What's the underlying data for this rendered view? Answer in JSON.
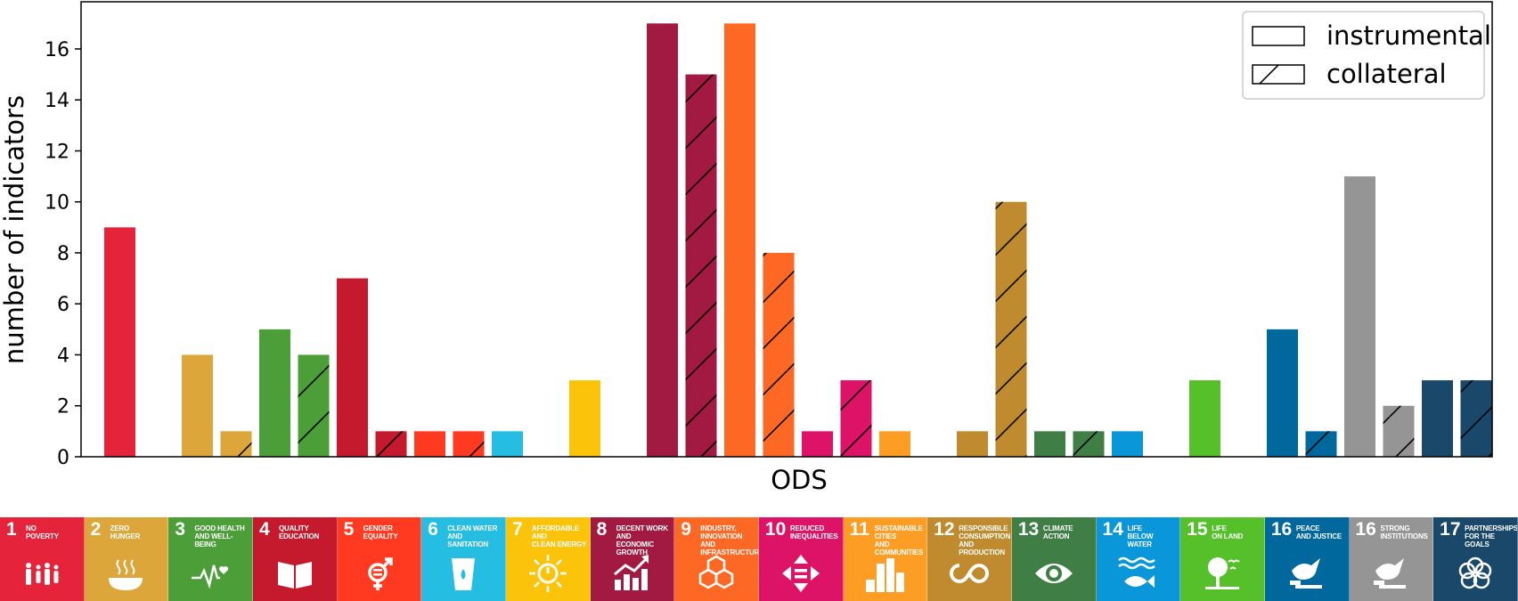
{
  "chart_data": {
    "type": "bar",
    "xlabel": "ODS",
    "ylabel": "number of indicators",
    "ylim": [
      0,
      17.85
    ],
    "yticks": [
      0,
      2,
      4,
      6,
      8,
      10,
      12,
      14,
      16
    ],
    "legend": {
      "placement": "top-right",
      "entries": [
        {
          "name": "instrumental",
          "pattern": "plain"
        },
        {
          "name": "collateral",
          "pattern": "hatched"
        }
      ]
    },
    "categories": [
      "1",
      "2",
      "3",
      "4",
      "5",
      "6",
      "7",
      "8",
      "9",
      "10",
      "11",
      "12",
      "13",
      "14",
      "15",
      "16",
      "16",
      "17"
    ],
    "series": [
      {
        "name": "instrumental",
        "values": [
          9,
          4,
          5,
          7,
          1,
          1,
          3,
          17,
          17,
          1,
          1,
          1,
          1,
          1,
          3,
          5,
          11,
          3
        ]
      },
      {
        "name": "collateral",
        "values": [
          0,
          1,
          4,
          1,
          1,
          0,
          0,
          15,
          8,
          3,
          0,
          10,
          1,
          0,
          0,
          1,
          2,
          3
        ]
      }
    ],
    "colors": [
      "#e5243b",
      "#dda63a",
      "#4c9f38",
      "#c5192d",
      "#ff3a21",
      "#26bde2",
      "#fcc30b",
      "#a21942",
      "#fd6925",
      "#dd1367",
      "#fd9d24",
      "#bf8b2e",
      "#3f7e44",
      "#0a97d9",
      "#56c02b",
      "#00689d",
      "#959595",
      "#19486a"
    ]
  },
  "goals": [
    {
      "number": "1",
      "title": "No\npoverty",
      "color": "#e5243b",
      "icon": "family-icon"
    },
    {
      "number": "2",
      "title": "Zero\nhunger",
      "color": "#dda63a",
      "icon": "food-bowl-icon"
    },
    {
      "number": "3",
      "title": "Good health\nand well-being",
      "color": "#4c9f38",
      "icon": "heartbeat-icon"
    },
    {
      "number": "4",
      "title": "Quality\neducation",
      "color": "#c5192d",
      "icon": "book-icon"
    },
    {
      "number": "5",
      "title": "Gender\nequality",
      "color": "#ff3a21",
      "icon": "gender-icon"
    },
    {
      "number": "6",
      "title": "Clean water\nand sanitation",
      "color": "#26bde2",
      "icon": "water-glass-icon"
    },
    {
      "number": "7",
      "title": "Affordable and\nclean energy",
      "color": "#fcc30b",
      "icon": "sun-power-icon"
    },
    {
      "number": "8",
      "title": "Decent work and\neconomic growth",
      "color": "#a21942",
      "icon": "growth-chart-icon"
    },
    {
      "number": "9",
      "title": "Industry, innovation\nand infrastructure",
      "color": "#fd6925",
      "icon": "cubes-icon"
    },
    {
      "number": "10",
      "title": "Reduced\ninequalities",
      "color": "#dd1367",
      "icon": "equality-arrows-icon"
    },
    {
      "number": "11",
      "title": "Sustainable cities\nand communities",
      "color": "#fd9d24",
      "icon": "city-icon"
    },
    {
      "number": "12",
      "title": "Responsible\nconsumption\nand production",
      "color": "#bf8b2e",
      "icon": "infinity-loop-icon"
    },
    {
      "number": "13",
      "title": "Climate\naction",
      "color": "#3f7e44",
      "icon": "earth-eye-icon"
    },
    {
      "number": "14",
      "title": "Life\nbelow water",
      "color": "#0a97d9",
      "icon": "fish-icon"
    },
    {
      "number": "15",
      "title": "Life\non land",
      "color": "#56c02b",
      "icon": "tree-icon"
    },
    {
      "number": "16",
      "title": "Peace\nand justice",
      "color": "#00689d",
      "icon": "dove-gavel-icon"
    },
    {
      "number": "16",
      "title": "Strong\ninstitutions",
      "color": "#959595",
      "icon": "dove-gavel-icon"
    },
    {
      "number": "17",
      "title": "Partnerships\nfor the goals",
      "color": "#19486a",
      "icon": "rings-icon"
    }
  ]
}
